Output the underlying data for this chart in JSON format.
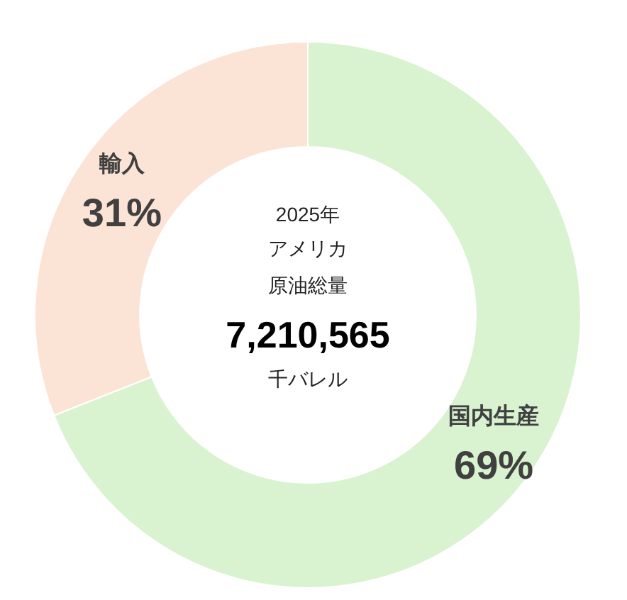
{
  "chart_data": {
    "type": "donut",
    "categories": [
      "国内生産",
      "輸入"
    ],
    "values": [
      69,
      31
    ],
    "colors": [
      "#d9f2d0",
      "#fbe3d6"
    ],
    "value_labels": [
      "69%",
      "31%"
    ],
    "annotations": [
      "2025年",
      "アメリカ",
      "原油総量",
      "7,210,565",
      "千バレル"
    ],
    "legend": false
  }
}
